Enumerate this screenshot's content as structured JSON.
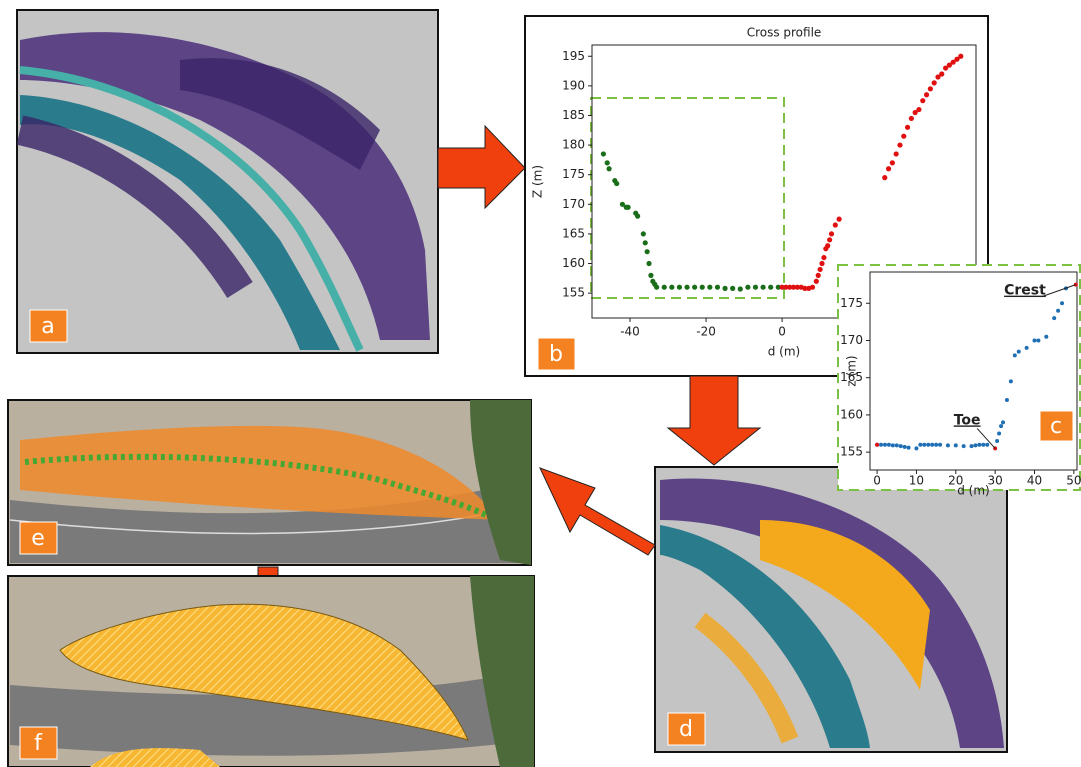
{
  "panels": [
    "a",
    "b",
    "c",
    "d",
    "e",
    "f"
  ],
  "chart_data": [
    {
      "type": "scatter",
      "title": "Cross profile",
      "xlabel": "d (m)",
      "ylabel": "Z (m)",
      "xlim": [
        -50,
        51
      ],
      "ylim": [
        150.8,
        196.9
      ],
      "xticks": [
        -40,
        -20,
        0
      ],
      "yticks": [
        155,
        160,
        165,
        170,
        175,
        180,
        185,
        190,
        195
      ],
      "series": [
        {
          "color": "#1a6e1a",
          "x": [
            -47,
            -46,
            -45.5,
            -44,
            -43.5,
            -42,
            -41,
            -40.5,
            -38.5,
            -38,
            -36.5,
            -36,
            -35.5,
            -35,
            -34.5,
            -34,
            -33.5,
            -33,
            -31,
            -29,
            -27,
            -25,
            -23,
            -21,
            -19,
            -17,
            -15,
            -13,
            -11,
            -9,
            -7,
            -5,
            -3,
            -1
          ],
          "values": [
            178.5,
            177,
            176,
            174,
            173.5,
            170,
            169.5,
            169.5,
            168.5,
            168,
            165,
            163.5,
            162,
            160,
            158,
            157,
            156.5,
            156,
            156,
            156,
            156,
            156,
            156,
            156,
            156,
            156,
            155.8,
            155.8,
            155.7,
            156,
            156,
            156,
            156,
            156
          ]
        },
        {
          "color": "#e01010",
          "x": [
            0,
            1,
            2,
            3,
            4,
            5,
            6,
            7,
            8,
            9,
            9.5,
            10,
            10.5,
            11,
            11.5,
            12,
            12.5,
            13,
            14,
            15,
            27,
            28,
            29,
            30,
            31,
            32,
            33,
            34,
            35,
            36,
            37,
            38,
            39,
            40,
            41,
            42,
            43,
            44,
            45,
            46,
            47
          ],
          "values": [
            156,
            156,
            156,
            156,
            156,
            156,
            155.8,
            155.8,
            156,
            157,
            158,
            159,
            160,
            161,
            162.5,
            163,
            164,
            165,
            166.5,
            167.5,
            174.5,
            176,
            177,
            178.5,
            180,
            181.5,
            183,
            184.5,
            185.5,
            186,
            187.5,
            188.5,
            189.5,
            190.5,
            191.5,
            192,
            193,
            193.5,
            194,
            194.5,
            195
          ]
        }
      ]
    },
    {
      "type": "scatter",
      "xlabel": "d (m)",
      "ylabel": "z (m)",
      "xlim": [
        -1.8,
        50.8
      ],
      "ylim": [
        152.6,
        179.2
      ],
      "xticks": [
        0,
        10,
        20,
        30,
        40,
        50
      ],
      "yticks": [
        155,
        160,
        165,
        170,
        175
      ],
      "annotations": [
        "Crest",
        "Toe"
      ],
      "series": [
        {
          "color": "#1f6fb4",
          "x": [
            0,
            1,
            2,
            3,
            4,
            5,
            6,
            7,
            8,
            10,
            11,
            12,
            13,
            14,
            15,
            16,
            18,
            20,
            22,
            24,
            25,
            26,
            27,
            28,
            30.5,
            31,
            31.5,
            32,
            33,
            34,
            35,
            36,
            38,
            40,
            41,
            43,
            45,
            46,
            47,
            48
          ],
          "values": [
            156,
            156,
            156,
            156,
            155.9,
            155.9,
            155.8,
            155.7,
            155.6,
            155.5,
            156,
            156,
            156,
            156,
            156,
            156,
            155.9,
            155.9,
            155.8,
            155.8,
            155.9,
            156,
            156,
            156,
            156.5,
            157.5,
            158.5,
            159,
            162,
            164.5,
            168,
            168.5,
            169,
            170,
            170,
            170.5,
            173,
            174,
            175,
            177
          ]
        },
        {
          "color": "#e01010",
          "x": [
            0,
            30,
            50.5
          ],
          "values": [
            156,
            155.5,
            177.5
          ]
        }
      ]
    }
  ]
}
